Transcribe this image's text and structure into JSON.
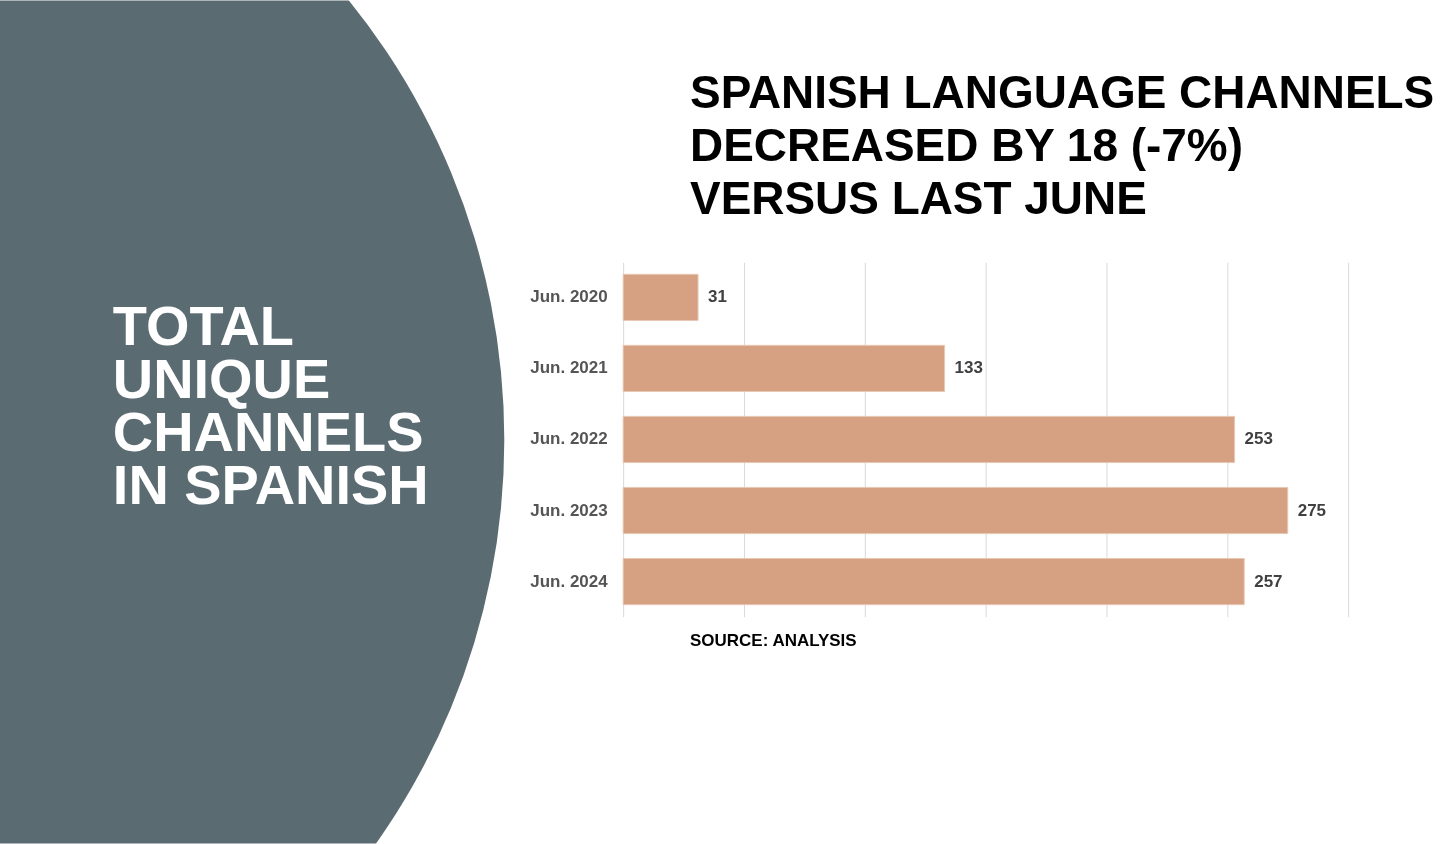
{
  "chart_data": {
    "type": "bar",
    "orientation": "horizontal",
    "title": "SPANISH LANGUAGE CHANNELS DECREASED BY 18 (-7%) VERSUS LAST JUNE",
    "categories": [
      "Jun. 2020",
      "Jun. 2021",
      "Jun. 2022",
      "Jun. 2023",
      "Jun. 2024"
    ],
    "values": [
      31,
      133,
      253,
      275,
      257
    ],
    "color": "#d6a183",
    "xlim": [
      0,
      300
    ],
    "xticks": [
      0,
      50,
      100,
      150,
      200,
      250,
      300
    ],
    "grid": "x",
    "tick_labels": "y",
    "data_labels": true,
    "annotations": [
      "TOTAL UNIQUE CHANNELS IN SPANISH",
      "SOURCE: ANALYSIS"
    ]
  }
}
